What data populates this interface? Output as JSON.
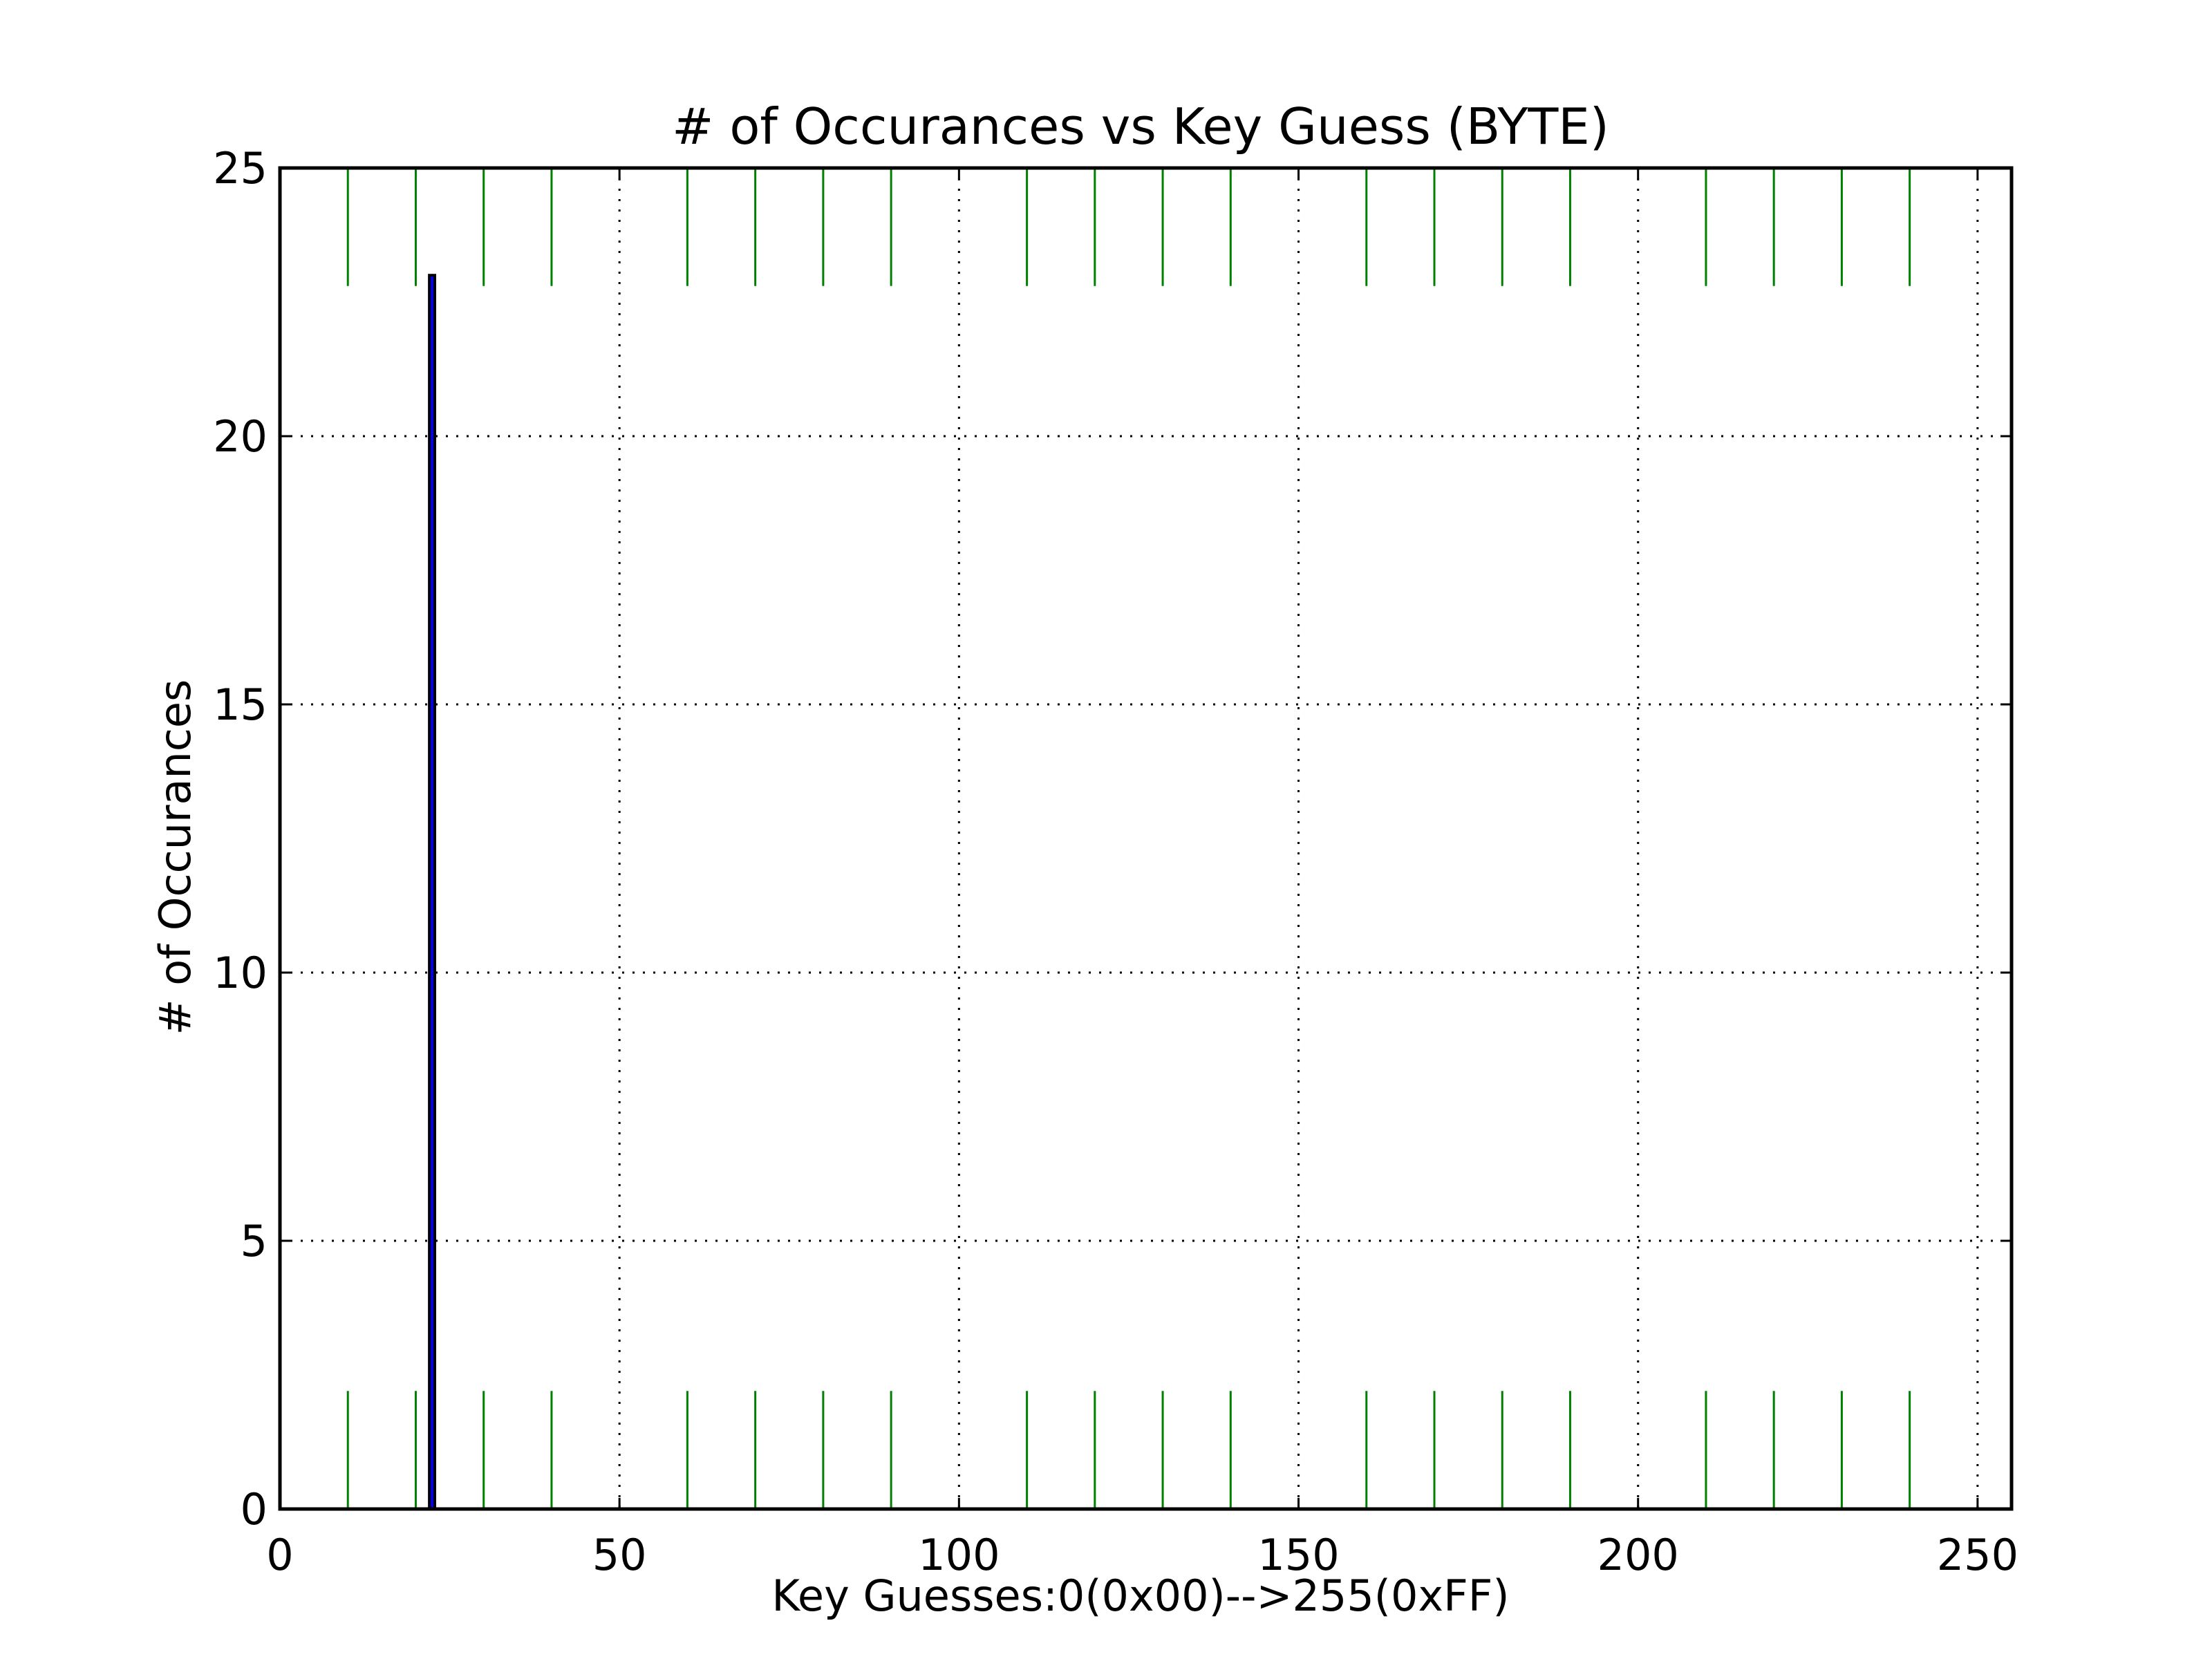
{
  "chart_data": {
    "type": "bar",
    "title": "# of Occurances vs Key Guess (BYTE)",
    "xlabel": "Key Guesses:0(0x00)-->255(0xFF)",
    "ylabel": "# of Occurances",
    "xlim": [
      0,
      255
    ],
    "ylim": [
      0,
      25
    ],
    "xticks": [
      0,
      50,
      100,
      150,
      200,
      250
    ],
    "yticks": [
      0,
      5,
      10,
      15,
      20,
      25
    ],
    "grid": true,
    "series": [
      {
        "x": [
          22
        ],
        "values": [
          23
        ],
        "color": "#0000ff"
      }
    ],
    "reference_lines": {
      "color": "#008000",
      "x": [
        10,
        20,
        30,
        40,
        60,
        70,
        80,
        90,
        110,
        120,
        130,
        140,
        160,
        170,
        180,
        190,
        210,
        220,
        230,
        240
      ],
      "bottom_range": [
        0,
        2.2
      ],
      "top_range": [
        22.8,
        25
      ]
    }
  }
}
